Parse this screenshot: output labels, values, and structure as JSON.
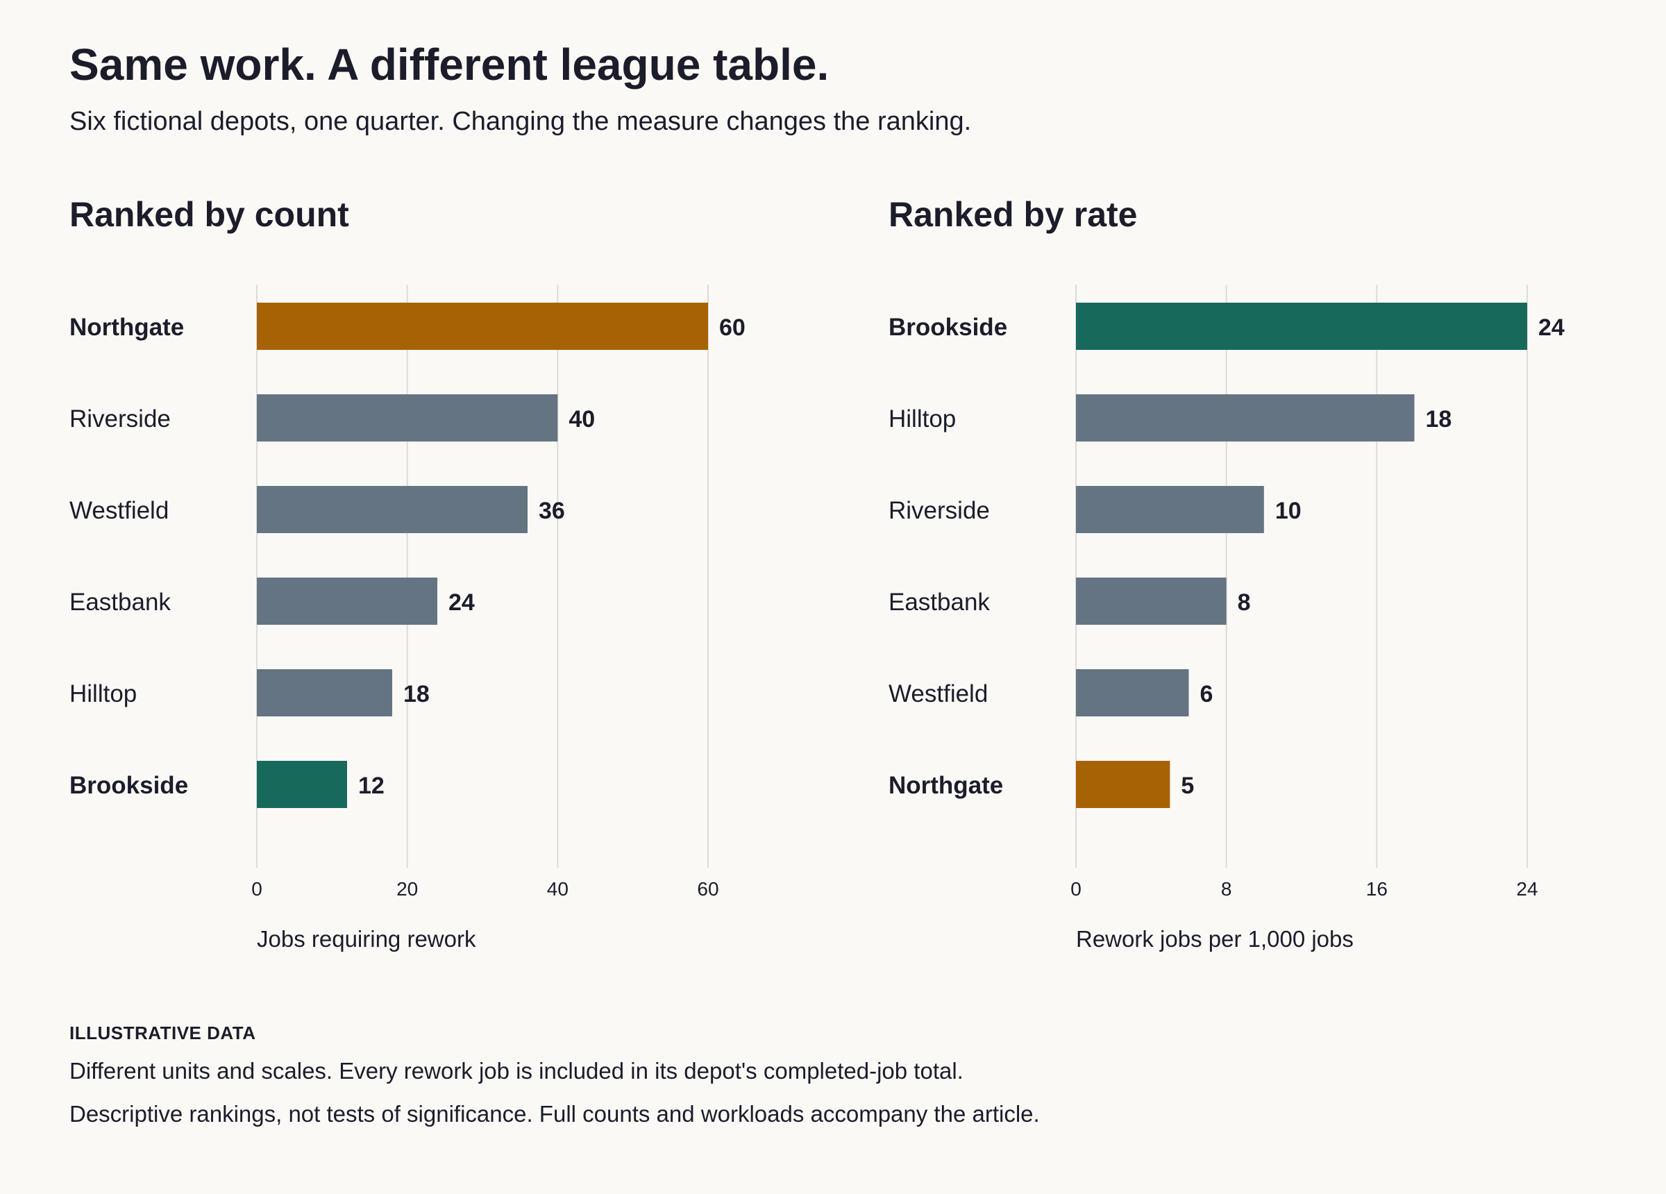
{
  "title": "Same work. A different league table.",
  "subtitle": "Six fictional depots, one quarter. Changing the measure changes the ranking.",
  "colors": {
    "default_bar": "#657482",
    "highlight_northgate": "#a86206",
    "highlight_brookside": "#17695c",
    "gridline": "#dddbd6",
    "text": "#1c1c2a",
    "background": "#faf9f6"
  },
  "chart_data": [
    {
      "type": "bar",
      "orientation": "horizontal",
      "title": "Ranked by count",
      "xlabel": "Jobs requiring rework",
      "categories": [
        "Northgate",
        "Riverside",
        "Westfield",
        "Eastbank",
        "Hilltop",
        "Brookside"
      ],
      "values": [
        60,
        40,
        36,
        24,
        18,
        12
      ],
      "highlight": {
        "Northgate": "highlight_northgate",
        "Brookside": "highlight_brookside"
      },
      "xlim": [
        0,
        60
      ],
      "xticks": [
        0,
        20,
        40,
        60
      ],
      "grid": true
    },
    {
      "type": "bar",
      "orientation": "horizontal",
      "title": "Ranked by rate",
      "xlabel": "Rework jobs per 1,000 jobs",
      "categories": [
        "Brookside",
        "Hilltop",
        "Riverside",
        "Eastbank",
        "Westfield",
        "Northgate"
      ],
      "values": [
        24,
        18,
        10,
        8,
        6,
        5
      ],
      "highlight": {
        "Northgate": "highlight_northgate",
        "Brookside": "highlight_brookside"
      },
      "xlim": [
        0,
        24
      ],
      "xticks": [
        0,
        8,
        16,
        24
      ],
      "grid": true
    }
  ],
  "footer": {
    "label": "ILLUSTRATIVE DATA",
    "lines": [
      "Different units and scales. Every rework job is included in its depot's completed-job total.",
      "Descriptive rankings, not tests of significance. Full counts and workloads accompany the article."
    ]
  }
}
